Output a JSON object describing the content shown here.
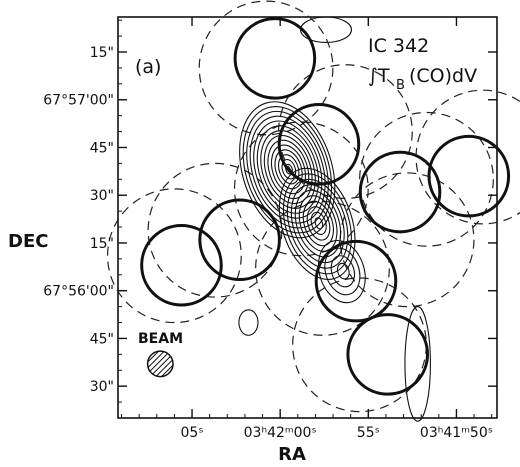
{
  "chart_data": {
    "type": "contour",
    "panel_label": "(a)",
    "object": "IC 342",
    "quantity": "∫T",
    "quantity_sub": "B",
    "quantity_rest": "(CO)dV",
    "xlabel": "RA",
    "ylabel": "DEC",
    "beam_label": "BEAM",
    "x_ticks": [
      {
        "label": "05ˢ",
        "sec": 5
      },
      {
        "label": "03ʰ42ᵐ00ˢ",
        "sec": 0
      },
      {
        "label": "55ˢ",
        "sec": -5
      },
      {
        "label": "03ʰ41ᵐ50ˢ",
        "sec": -10
      }
    ],
    "y_ticks": [
      {
        "label": "15\"",
        "arcsec": 75
      },
      {
        "label": "67°57'00\"",
        "arcsec": 60
      },
      {
        "label": "45\"",
        "arcsec": 45
      },
      {
        "label": "30\"",
        "arcsec": 30
      },
      {
        "label": "15\"",
        "arcsec": 15
      },
      {
        "label": "67°56'00\"",
        "arcsec": 0
      },
      {
        "label": "45\"",
        "arcsec": -15
      },
      {
        "label": "30\"",
        "arcsec": -30
      }
    ],
    "xlim_sec": [
      9.2,
      -12.3
    ],
    "ylim_arcsec": [
      86,
      -40
    ],
    "solid_circles": [
      {
        "ra_sec": 0.3,
        "dec_arcsec": 73
      },
      {
        "ra_sec": -2.2,
        "dec_arcsec": 46
      },
      {
        "ra_sec": -6.8,
        "dec_arcsec": 31
      },
      {
        "ra_sec": -10.7,
        "dec_arcsec": 36
      },
      {
        "ra_sec": 2.3,
        "dec_arcsec": 16
      },
      {
        "ra_sec": 5.6,
        "dec_arcsec": 8
      },
      {
        "ra_sec": -4.3,
        "dec_arcsec": 3
      },
      {
        "ra_sec": -6.1,
        "dec_arcsec": -20
      }
    ],
    "solid_circle_radius_arcsec": 12.5,
    "dashed_circles": [
      {
        "ra_sec": 0.8,
        "dec_arcsec": 70
      },
      {
        "ra_sec": -3.7,
        "dec_arcsec": 50
      },
      {
        "ra_sec": -8.3,
        "dec_arcsec": 35
      },
      {
        "ra_sec": -11.5,
        "dec_arcsec": 42
      },
      {
        "ra_sec": 3.7,
        "dec_arcsec": 19
      },
      {
        "ra_sec": 6.0,
        "dec_arcsec": 11
      },
      {
        "ra_sec": -2.4,
        "dec_arcsec": 7
      },
      {
        "ra_sec": -7.2,
        "dec_arcsec": 16
      },
      {
        "ra_sec": -4.5,
        "dec_arcsec": -17
      },
      {
        "ra_sec": -1.2,
        "dec_arcsec": 32
      }
    ],
    "dashed_circle_radius_arcsec": 21,
    "contour_peaks": [
      {
        "ra_sec": -0.4,
        "dec_arcsec": 38,
        "levels": 14,
        "rx_arcsec": 14,
        "ry_arcsec": 22
      },
      {
        "ra_sec": -2.1,
        "dec_arcsec": 21,
        "levels": 10,
        "rx_arcsec": 11,
        "ry_arcsec": 18
      },
      {
        "ra_sec": -3.5,
        "dec_arcsec": 6,
        "levels": 4,
        "rx_arcsec": 7,
        "ry_arcsec": 10
      }
    ],
    "extra_contours": [
      {
        "ra_sec": -7.8,
        "dec_arcsec": -23,
        "rx_arcsec": 4,
        "ry_arcsec": 18
      },
      {
        "ra_sec": 1.8,
        "dec_arcsec": -10,
        "rx_arcsec": 3,
        "ry_arcsec": 4
      },
      {
        "ra_sec": -2.6,
        "dec_arcsec": 82,
        "rx_arcsec": 8,
        "ry_arcsec": 4
      }
    ],
    "beam": {
      "ra_sec": 6.8,
      "dec_arcsec": -23,
      "radius_arcsec": 4
    }
  }
}
